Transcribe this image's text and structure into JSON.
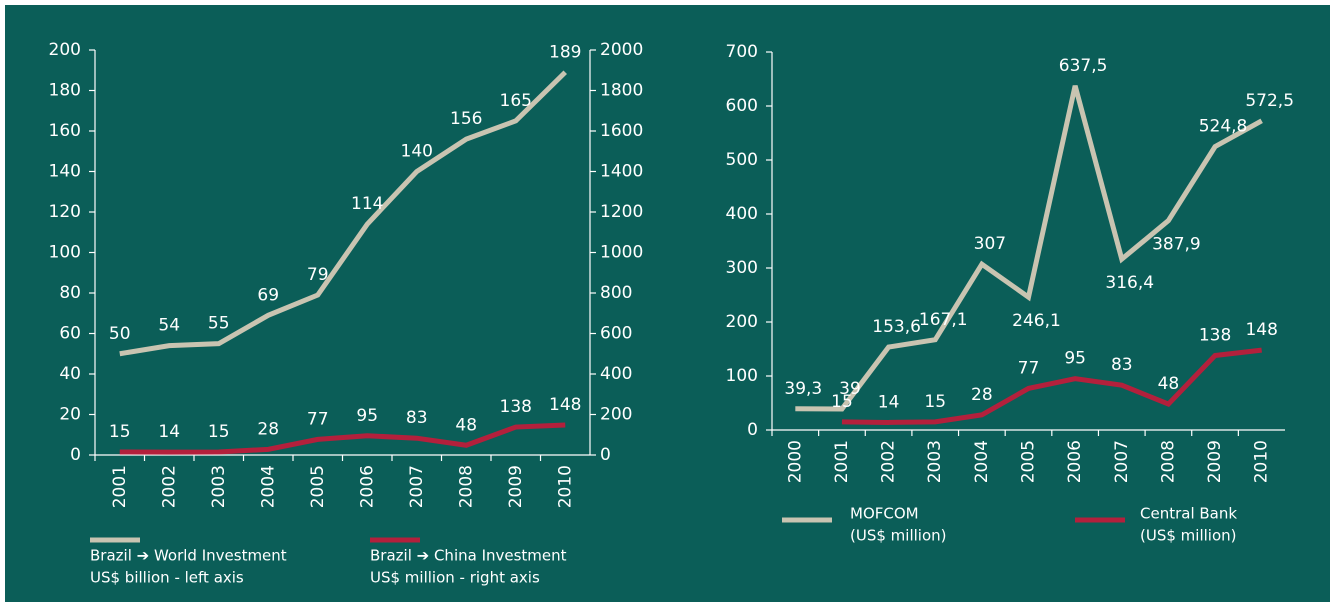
{
  "chart_data": [
    {
      "type": "line",
      "categories": [
        "2001",
        "2002",
        "2003",
        "2004",
        "2005",
        "2006",
        "2007",
        "2008",
        "2009",
        "2010"
      ],
      "ylim": [
        0,
        200
      ],
      "yticks": [
        0,
        20,
        40,
        60,
        80,
        100,
        120,
        140,
        160,
        180,
        200
      ],
      "y2lim": [
        0,
        2000
      ],
      "y2ticks": [
        0,
        200,
        400,
        600,
        800,
        1000,
        1200,
        1400,
        1600,
        1800,
        2000
      ],
      "series": [
        {
          "name": "Brazil ➔ World Investment",
          "unit": "US$ billion - left axis",
          "color": "#c9c4b1",
          "axis": "y",
          "values": [
            50,
            54,
            55,
            69,
            79,
            114,
            140,
            156,
            165,
            189
          ]
        },
        {
          "name": "Brazil ➔ China Investment",
          "unit": "US$ million - right axis",
          "color": "#b3203c",
          "axis": "y2",
          "values": [
            15,
            14,
            15,
            28,
            77,
            95,
            83,
            48,
            138,
            148
          ]
        }
      ]
    },
    {
      "type": "line",
      "categories": [
        "2000",
        "2001",
        "2002",
        "2003",
        "2004",
        "2005",
        "2006",
        "2007",
        "2008",
        "2009",
        "2010"
      ],
      "ylim": [
        0,
        700
      ],
      "yticks": [
        0,
        100,
        200,
        300,
        400,
        500,
        600,
        700
      ],
      "series": [
        {
          "name": "MOFCOM",
          "unit": "(US$ million)",
          "color": "#c9c4b1",
          "values": [
            39.3,
            39,
            153.6,
            167.1,
            307,
            246.1,
            637.5,
            316.4,
            387.9,
            524.8,
            572.5
          ],
          "value_labels": [
            "39,3",
            "39",
            "153,6",
            "167,1",
            "307",
            "246,1",
            "637,5",
            "316,4",
            "387,9",
            "524,8",
            "572,5"
          ]
        },
        {
          "name": "Central Bank",
          "unit": "(US$ million)",
          "color": "#b3203c",
          "values": [
            null,
            15,
            14,
            15,
            28,
            77,
            95,
            83,
            48,
            138,
            148
          ]
        }
      ]
    }
  ]
}
